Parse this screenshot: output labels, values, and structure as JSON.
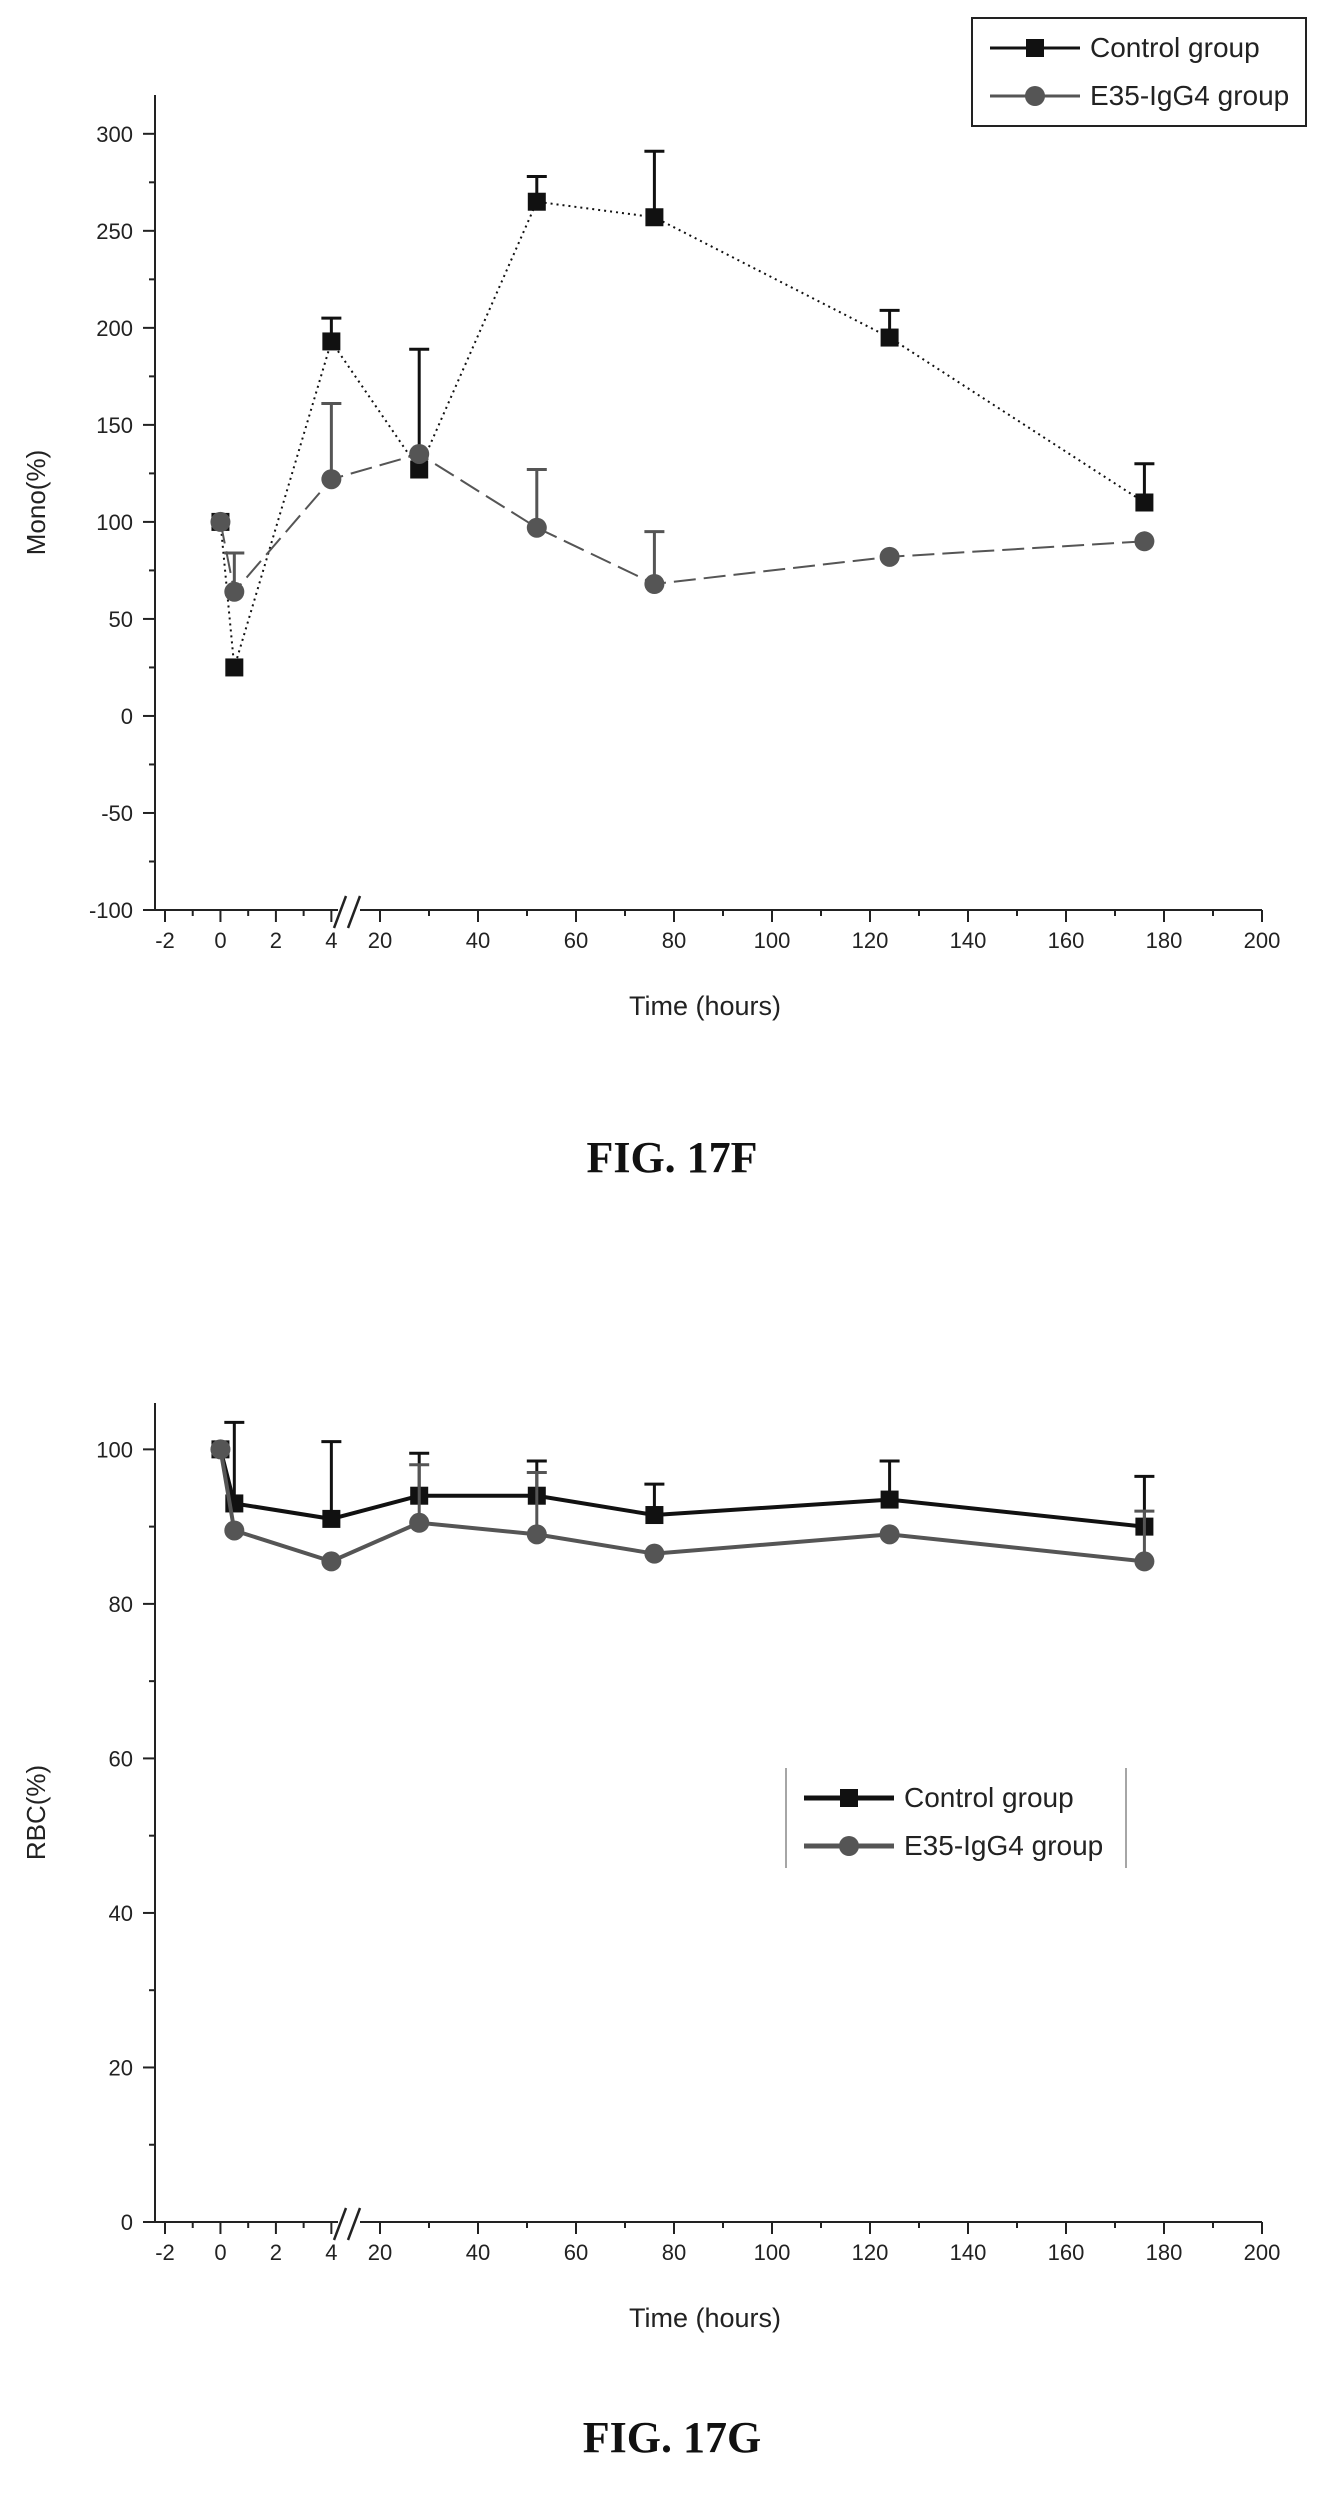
{
  "chart_data": [
    {
      "type": "line",
      "figure_caption": "FIG. 17F",
      "xlabel": "Time (hours)",
      "ylabel": "Mono(%)",
      "ylim": [
        -100,
        320
      ],
      "yticks": [
        -100,
        -50,
        0,
        50,
        100,
        150,
        200,
        250,
        300
      ],
      "xaxis_break": "broken axis between 4 and 20 hours",
      "xticks_left": [
        -2,
        0,
        2,
        4
      ],
      "xticks_right": [
        20,
        40,
        60,
        80,
        100,
        120,
        140,
        160,
        180,
        200
      ],
      "legend_placement": "top-right",
      "series": [
        {
          "name": "Control group",
          "marker": "square",
          "color": "#111111",
          "x": [
            0,
            0.5,
            4,
            28,
            52,
            76,
            124,
            176
          ],
          "values": [
            100,
            25,
            193,
            127,
            265,
            257,
            195,
            110
          ],
          "error_up": [
            0,
            0,
            12,
            62,
            13,
            34,
            14,
            20
          ]
        },
        {
          "name": "E35-IgG4 group",
          "marker": "circle",
          "color": "#555555",
          "x": [
            0,
            0.5,
            4,
            28,
            52,
            76,
            124,
            176
          ],
          "values": [
            100,
            64,
            122,
            135,
            97,
            68,
            82,
            90
          ],
          "error_up": [
            0,
            20,
            39,
            0,
            30,
            27,
            0,
            0
          ]
        }
      ]
    },
    {
      "type": "line",
      "figure_caption": "FIG. 17G",
      "xlabel": "Time (hours)",
      "ylabel": "RBC(%)",
      "ylim": [
        0,
        106
      ],
      "yticks": [
        0,
        20,
        40,
        60,
        80,
        100
      ],
      "xaxis_break": "broken axis between 4 and 20 hours",
      "xticks_left": [
        -2,
        0,
        2,
        4
      ],
      "xticks_right": [
        20,
        40,
        60,
        80,
        100,
        120,
        140,
        160,
        180,
        200
      ],
      "legend_placement": "center-right",
      "series": [
        {
          "name": "Control group",
          "marker": "square",
          "color": "#111111",
          "x": [
            0,
            0.5,
            4,
            28,
            52,
            76,
            124,
            176
          ],
          "values": [
            100,
            93,
            91,
            94,
            94,
            91.5,
            93.5,
            90
          ],
          "error_up": [
            0,
            10.5,
            10,
            5.5,
            4.5,
            4,
            5,
            6.5
          ]
        },
        {
          "name": "E35-IgG4 group",
          "marker": "circle",
          "color": "#555555",
          "x": [
            0,
            0.5,
            4,
            28,
            52,
            76,
            124,
            176
          ],
          "values": [
            100,
            89.5,
            85.5,
            90.5,
            89,
            86.5,
            89,
            85.5
          ],
          "error_up": [
            0,
            0,
            0,
            7.5,
            8,
            0,
            0,
            6.5
          ]
        }
      ]
    }
  ]
}
